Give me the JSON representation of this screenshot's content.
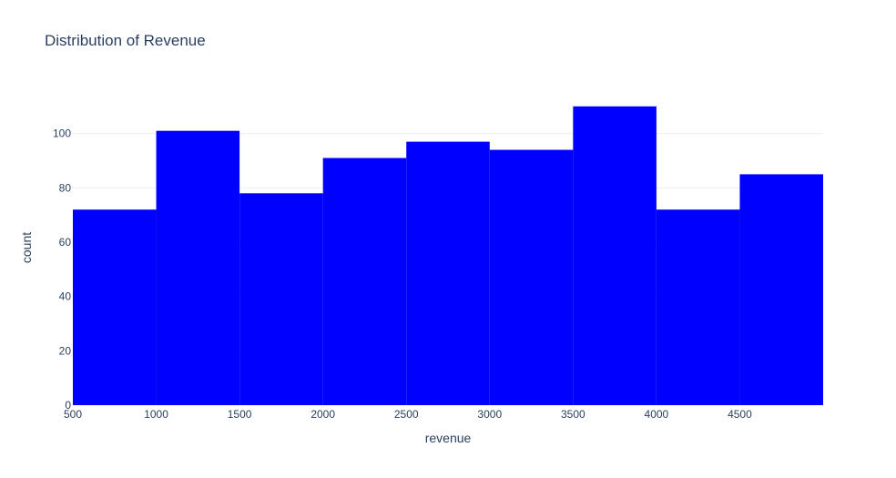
{
  "chart_data": {
    "type": "bar",
    "title": "Distribution of Revenue",
    "xlabel": "revenue",
    "ylabel": "count",
    "bin_edges": [
      500,
      1000,
      1500,
      2000,
      2500,
      3000,
      3500,
      4000,
      4500,
      5000
    ],
    "values": [
      72,
      101,
      78,
      91,
      97,
      94,
      110,
      72,
      85
    ],
    "xlim": [
      500,
      5000
    ],
    "ylim": [
      0,
      120
    ],
    "x_ticks": [
      "500",
      "1000",
      "1500",
      "2000",
      "2500",
      "3000",
      "3500",
      "4000",
      "4500"
    ],
    "y_ticks": [
      "0",
      "20",
      "40",
      "60",
      "80",
      "100"
    ],
    "bar_color": "#0000ff",
    "grid": true,
    "legend": "none"
  }
}
